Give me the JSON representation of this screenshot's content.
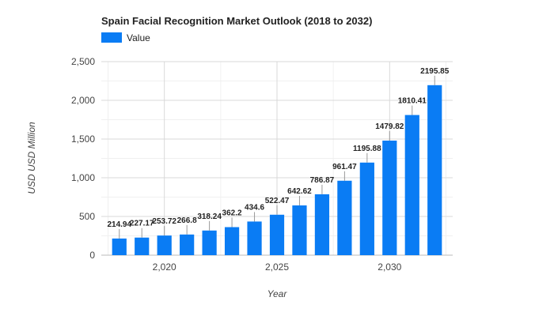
{
  "chart_data": {
    "type": "bar",
    "title": "Spain Facial Recognition Market Outlook (2018 to 2032)",
    "xlabel": "Year",
    "ylabel": "USD USD Million",
    "legend": "top-left",
    "grid": true,
    "ylim": [
      0,
      2500
    ],
    "yticks": [
      0,
      500,
      1000,
      1500,
      2000,
      2500
    ],
    "ytick_labels": [
      "0",
      "500",
      "1,000",
      "1,500",
      "2,000",
      "2,500"
    ],
    "xlim": [
      2017.2,
      2032.8
    ],
    "xticks": [
      2020,
      2025,
      2030
    ],
    "xtick_labels": [
      "2,020",
      "2,025",
      "2,030"
    ],
    "series": [
      {
        "name": "Value",
        "color": "#0a7cf4",
        "x": [
          2018,
          2019,
          2020,
          2021,
          2022,
          2023,
          2024,
          2025,
          2026,
          2027,
          2028,
          2029,
          2030,
          2031,
          2032
        ],
        "values": [
          214.94,
          227.17,
          253.72,
          266.8,
          318.24,
          362.2,
          434.6,
          522.47,
          642.62,
          786.87,
          961.47,
          1195.88,
          1479.82,
          1810.41,
          2195.85
        ],
        "labels": [
          "214.94",
          "227.17",
          "253.72",
          "266.8",
          "318.24",
          "362.2",
          "434.6",
          "522.47",
          "642.62",
          "786.87",
          "961.47",
          "1195.88",
          "1479.82",
          "1810.41",
          "2195.85"
        ]
      }
    ]
  }
}
